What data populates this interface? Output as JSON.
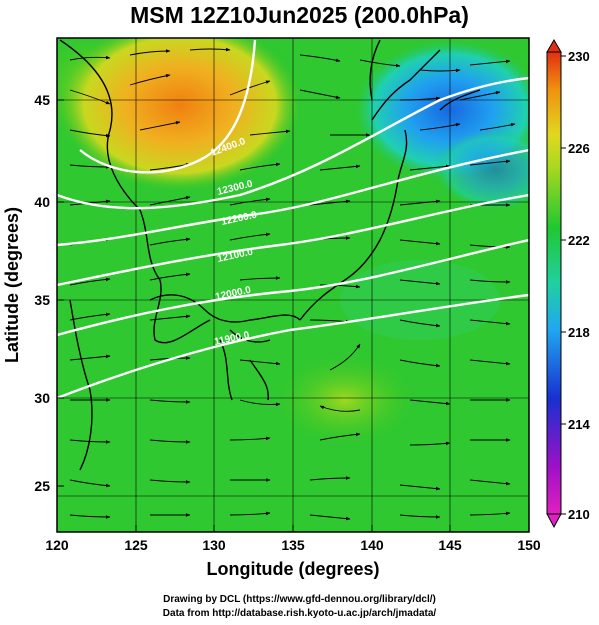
{
  "title": "MSM 12Z10Jun2025 (200.0hPa)",
  "x_axis": {
    "label": "Longitude (degrees)",
    "ticks": [
      "120",
      "125",
      "130",
      "135",
      "140",
      "145",
      "150"
    ]
  },
  "y_axis": {
    "label": "Latitude  (degrees)",
    "ticks": [
      "25",
      "30",
      "35",
      "40",
      "45"
    ]
  },
  "colorbar": {
    "ticks": [
      "230",
      "226",
      "222",
      "218",
      "214",
      "210"
    ],
    "range": [
      210,
      230
    ],
    "colors": [
      "#e020c0",
      "#a020c0",
      "#2030d0",
      "#20a0f0",
      "#20d0a0",
      "#20c020",
      "#80d020",
      "#d0e020",
      "#f0a010",
      "#e04010"
    ]
  },
  "contour_labels": [
    "12400.0",
    "12300.0",
    "12200.0",
    "12100.0",
    "12000.0",
    "11900.0"
  ],
  "credits": [
    "Drawing by DCL (https://www.gfd-dennou.org/library/dcl/)",
    "Data from http://database.rish.kyoto-u.ac.jp/arch/jmadata/"
  ]
}
